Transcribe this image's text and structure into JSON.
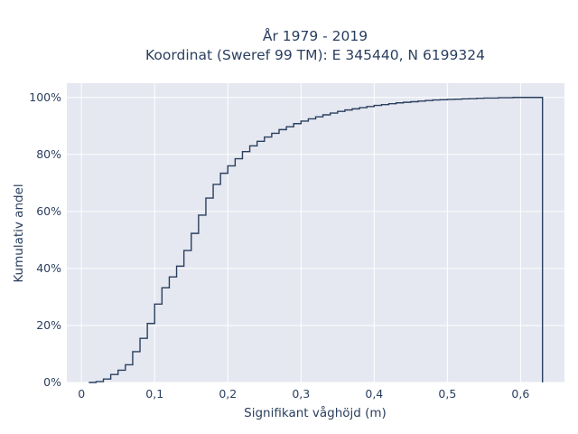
{
  "chart_data": {
    "type": "line",
    "line_shape": "step",
    "title_lines": [
      "År 1979 - 2019",
      "Koordinat (Sweref 99 TM): E 345440, N 6199324"
    ],
    "xlabel": "Signifikant våghöjd (m)",
    "ylabel": "Kumulativ andel",
    "xlim": [
      -0.02,
      0.66
    ],
    "ylim": [
      0,
      1.05
    ],
    "x_ticks": [
      0,
      0.1,
      0.2,
      0.3,
      0.4,
      0.5,
      0.6
    ],
    "x_tick_labels": [
      "0",
      "0,1",
      "0,2",
      "0,3",
      "0,4",
      "0,5",
      "0,6"
    ],
    "y_ticks": [
      0,
      0.2,
      0.4,
      0.6,
      0.8,
      1.0
    ],
    "y_tick_labels": [
      "0%",
      "20%",
      "40%",
      "60%",
      "80%",
      "100%"
    ],
    "grid": true,
    "legend": "none",
    "colors": {
      "plot_background": "#e5e8f0",
      "grid": "#ffffff",
      "line": "#2a3f5f"
    },
    "series": [
      {
        "x": [
          0.01,
          0.02,
          0.03,
          0.04,
          0.05,
          0.06,
          0.07,
          0.08,
          0.09,
          0.1,
          0.11,
          0.12,
          0.13,
          0.14,
          0.15,
          0.16,
          0.17,
          0.18,
          0.19,
          0.2,
          0.21,
          0.22,
          0.23,
          0.24,
          0.25,
          0.26,
          0.27,
          0.28,
          0.29,
          0.3,
          0.31,
          0.32,
          0.33,
          0.34,
          0.35,
          0.36,
          0.37,
          0.38,
          0.39,
          0.4,
          0.41,
          0.42,
          0.43,
          0.44,
          0.45,
          0.46,
          0.47,
          0.48,
          0.49,
          0.5,
          0.51,
          0.52,
          0.53,
          0.54,
          0.55,
          0.56,
          0.57,
          0.58,
          0.59,
          0.6,
          0.61,
          0.63
        ],
        "y": [
          0.0,
          0.003,
          0.012,
          0.028,
          0.043,
          0.062,
          0.108,
          0.155,
          0.207,
          0.275,
          0.332,
          0.37,
          0.408,
          0.463,
          0.523,
          0.587,
          0.647,
          0.695,
          0.734,
          0.76,
          0.785,
          0.81,
          0.83,
          0.846,
          0.861,
          0.874,
          0.887,
          0.897,
          0.908,
          0.917,
          0.925,
          0.932,
          0.939,
          0.945,
          0.951,
          0.956,
          0.96,
          0.964,
          0.968,
          0.972,
          0.975,
          0.978,
          0.981,
          0.983,
          0.985,
          0.987,
          0.989,
          0.991,
          0.992,
          0.993,
          0.994,
          0.995,
          0.996,
          0.997,
          0.998,
          0.998,
          0.999,
          0.999,
          1.0,
          1.0,
          1.0,
          1.0
        ]
      }
    ]
  }
}
